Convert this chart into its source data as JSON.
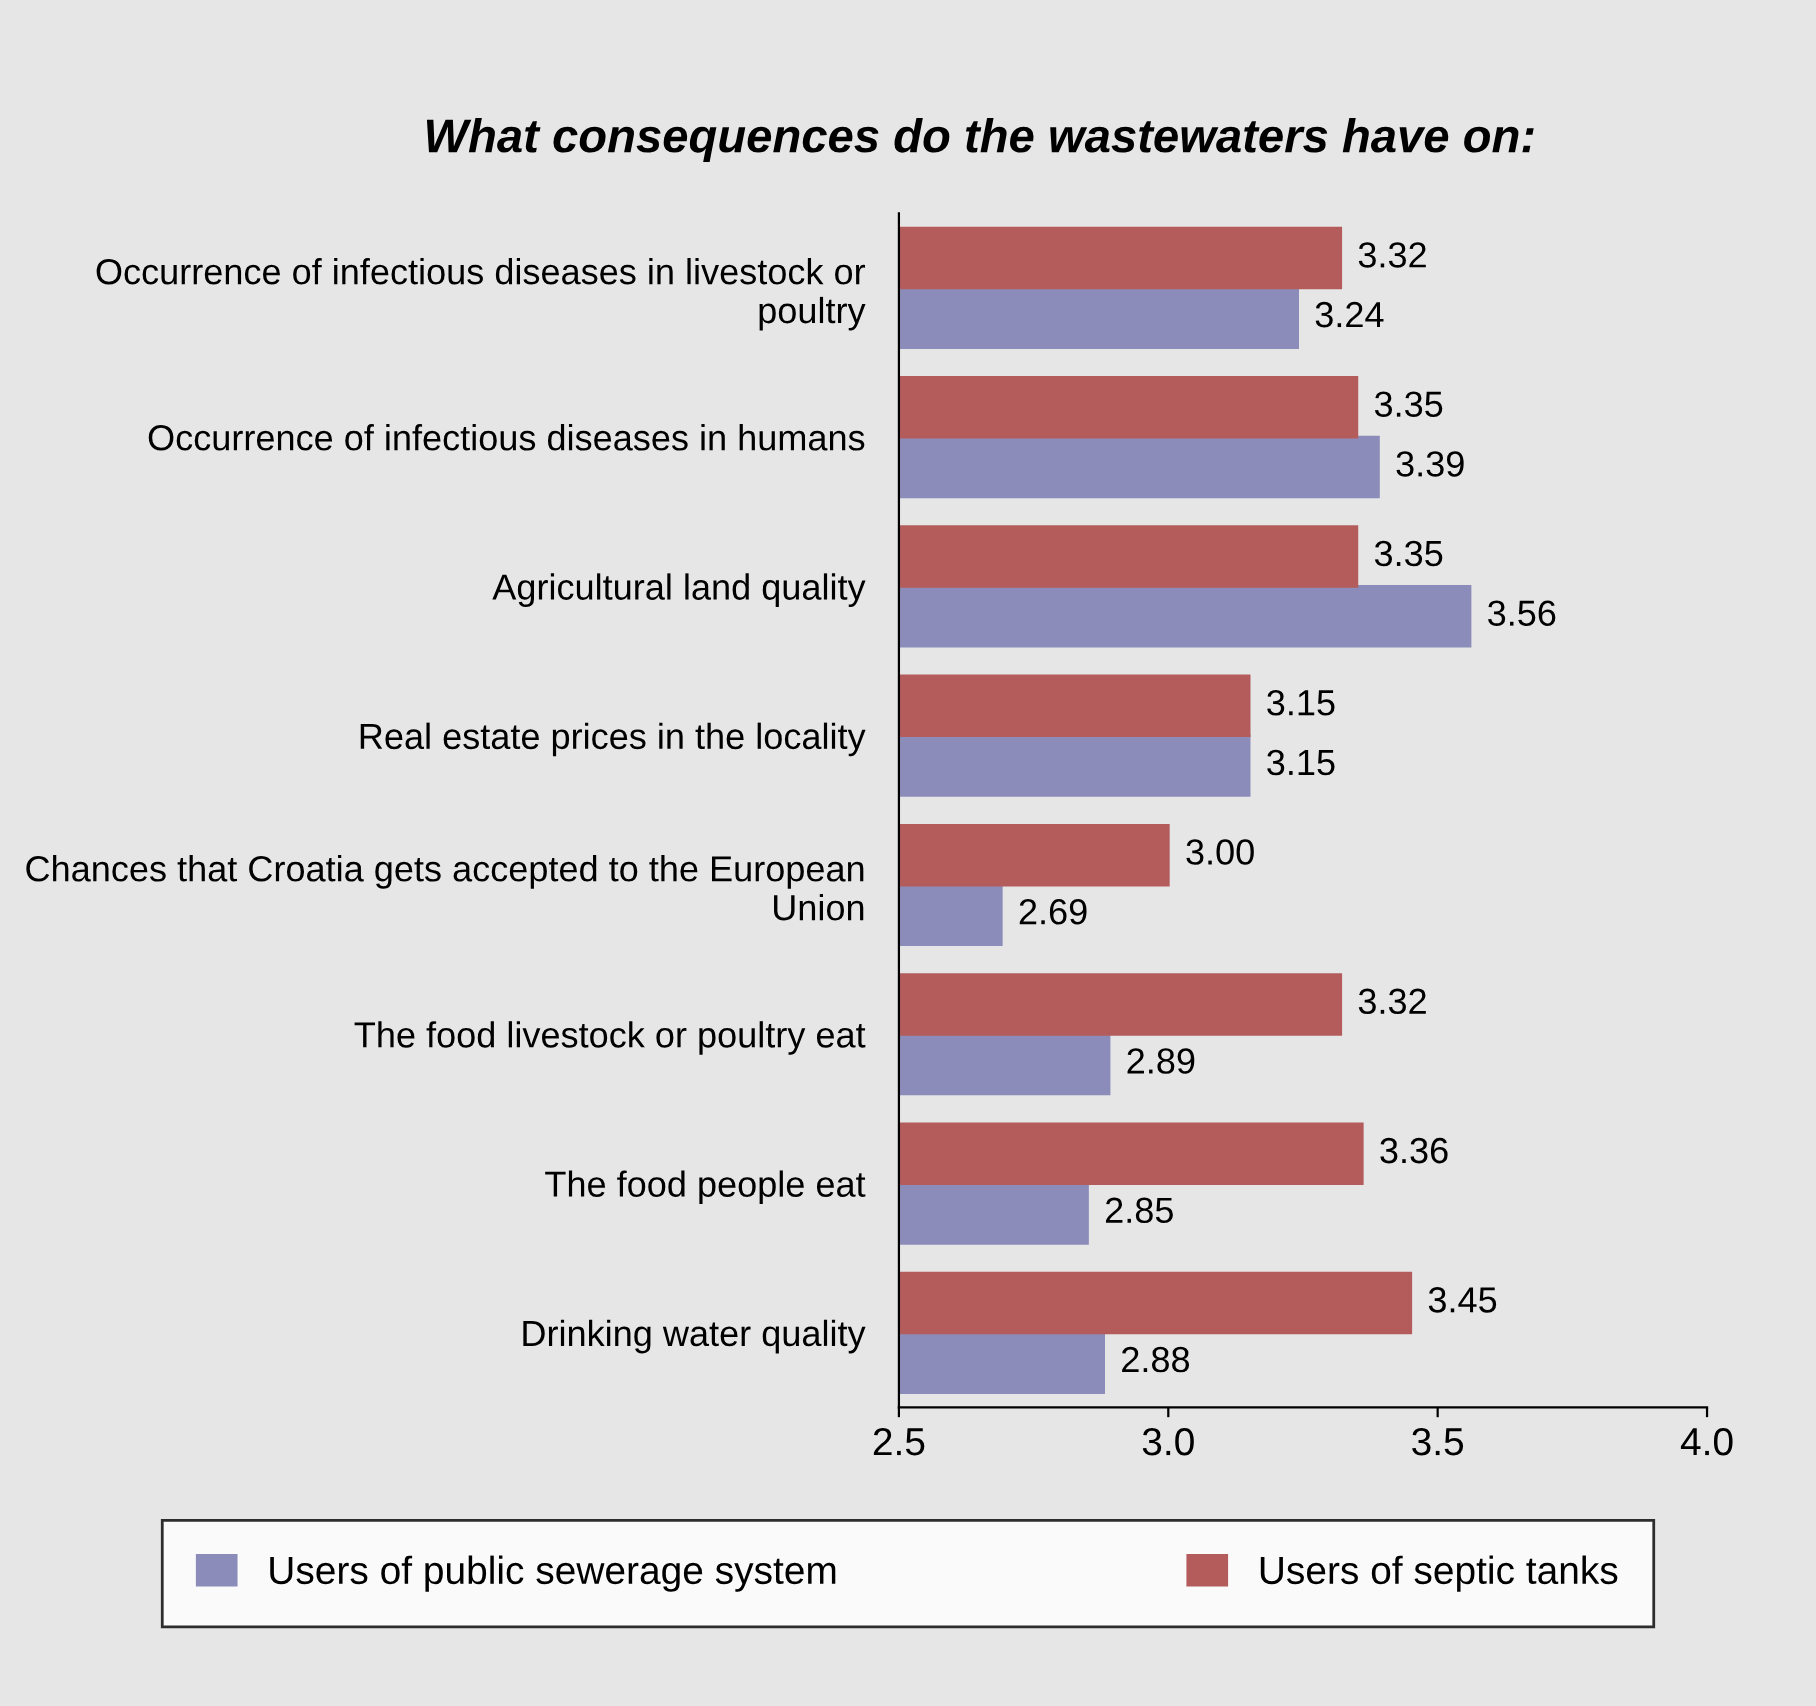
{
  "chart_data": {
    "type": "bar",
    "orientation": "horizontal",
    "title": "What consequences do the wastewaters have on:",
    "categories": [
      "Occurrence of infectious diseases in livestock or poultry",
      "Occurrence of infectious diseases in humans",
      "Agricultural land quality",
      "Real estate prices in the locality",
      "Chances that Croatia gets accepted to the European Union",
      "The food livestock or poultry eat",
      "The food people eat",
      "Drinking water quality"
    ],
    "series": [
      {
        "name": "Users of public sewerage system",
        "color": "#8c8cba",
        "values": [
          3.24,
          3.39,
          3.56,
          3.15,
          2.69,
          2.89,
          2.85,
          2.88
        ],
        "value_labels": [
          "3.24",
          "3.39",
          "3.56",
          "3.15",
          "2.69",
          "2.89",
          "2.85",
          "2.88"
        ]
      },
      {
        "name": "Users of septic tanks",
        "color": "#b45c5c",
        "values": [
          3.32,
          3.35,
          3.35,
          3.15,
          3.0,
          3.32,
          3.36,
          3.45
        ],
        "value_labels": [
          "3.32",
          "3.35",
          "3.35",
          "3.15",
          "3.00",
          "3.32",
          "3.36",
          "3.45"
        ]
      }
    ],
    "xlim": [
      2.5,
      4.0
    ],
    "xticks": [
      2.5,
      {
        "value": 3.0,
        "label": "3.0"
      },
      3.5,
      {
        "value": 4.0,
        "label": "4.0"
      }
    ],
    "grid": false,
    "legend": "bottom"
  }
}
